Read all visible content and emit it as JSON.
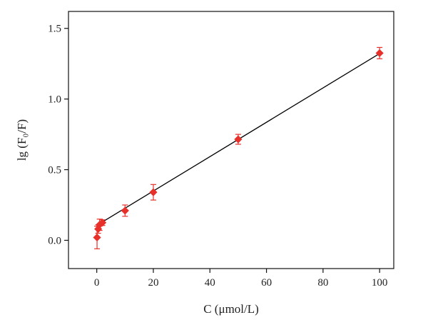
{
  "chart_data": {
    "type": "scatter",
    "title": "",
    "xlabel": "C (μmol/L)",
    "ylabel": "lg (F₀/F)",
    "xlim": [
      -10,
      105
    ],
    "ylim": [
      -0.2,
      1.62
    ],
    "xticks": [
      0,
      20,
      40,
      60,
      80,
      100
    ],
    "yticks": [
      0.0,
      0.5,
      1.0,
      1.5
    ],
    "xtick_labels": [
      "0",
      "20",
      "40",
      "60",
      "80",
      "100"
    ],
    "ytick_labels": [
      "0.0",
      "0.5",
      "1.0",
      "1.5"
    ],
    "grid": false,
    "legend": "none",
    "marker_color": "#e8302a",
    "fit_line_color": "#000000",
    "points": [
      {
        "x": 0.1,
        "y": 0.02,
        "err": 0.08
      },
      {
        "x": 0.5,
        "y": 0.08,
        "err": 0.03
      },
      {
        "x": 1,
        "y": 0.11,
        "err": 0.04
      },
      {
        "x": 2,
        "y": 0.125,
        "err": 0.02
      },
      {
        "x": 10,
        "y": 0.21,
        "err": 0.04
      },
      {
        "x": 20,
        "y": 0.34,
        "err": 0.055
      },
      {
        "x": 50,
        "y": 0.715,
        "err": 0.035
      },
      {
        "x": 100,
        "y": 1.325,
        "err": 0.04
      }
    ],
    "fit_line": {
      "x": [
        0.1,
        100
      ],
      "y": [
        0.107,
        1.322
      ]
    }
  }
}
